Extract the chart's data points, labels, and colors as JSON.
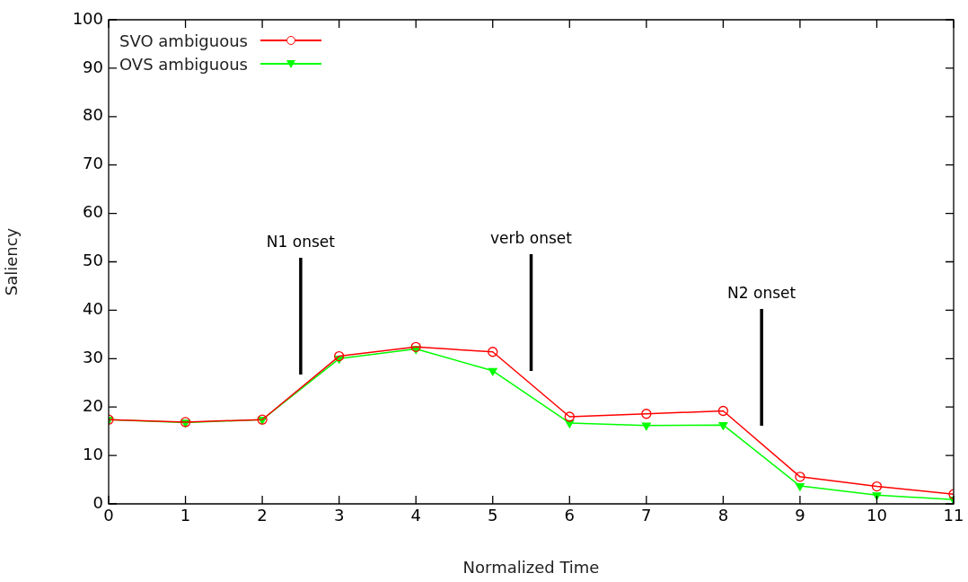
{
  "chart_data": {
    "type": "line",
    "xlabel": "Normalized Time",
    "ylabel": "Saliency",
    "x": [
      0,
      1,
      2,
      3,
      4,
      5,
      6,
      7,
      8,
      9,
      10,
      11
    ],
    "xlim": [
      0,
      11
    ],
    "xticks": [
      0,
      1,
      2,
      3,
      4,
      5,
      6,
      7,
      8,
      9,
      10,
      11
    ],
    "ylim": [
      0,
      100
    ],
    "yticks": [
      0,
      10,
      20,
      30,
      40,
      50,
      60,
      70,
      80,
      90,
      100
    ],
    "grid": false,
    "legend": "top left",
    "line_style": "solid",
    "series": [
      {
        "name": "SVO ambiguous",
        "color": "#ff0000",
        "marker": "circle",
        "values": [
          17.4,
          16.9,
          17.4,
          30.5,
          32.4,
          31.4,
          18.0,
          18.6,
          19.2,
          5.6,
          3.6,
          2.0
        ]
      },
      {
        "name": "OVS ambiguous",
        "color": "#00ff00",
        "marker": "triangle",
        "values": [
          17.4,
          16.8,
          17.4,
          30.0,
          32.0,
          27.5,
          16.7,
          16.2,
          16.3,
          3.7,
          1.8,
          0.9
        ]
      }
    ],
    "ref_lines": [
      {
        "axis": "x",
        "value": 2.5,
        "label": "N1 onset"
      },
      {
        "axis": "x",
        "value": 5.5,
        "label": "verb onset"
      },
      {
        "axis": "x",
        "value": 8.5,
        "label": "N2 onset"
      }
    ]
  }
}
